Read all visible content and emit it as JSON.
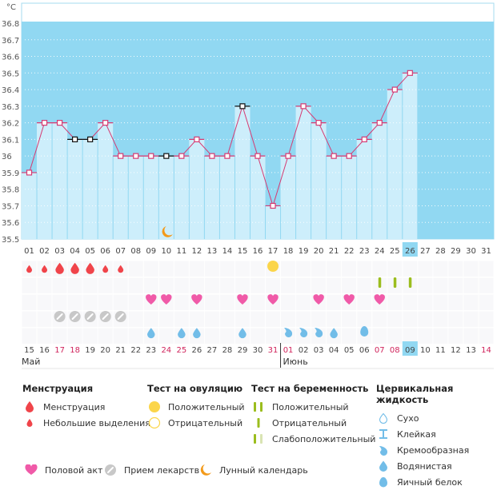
{
  "chart_data": {
    "type": "bar",
    "title": "",
    "ylabel": "°C",
    "xlabel": "",
    "ylim": [
      35.5,
      36.8
    ],
    "yticks": [
      "36.8",
      "36.7",
      "36.6",
      "36.5",
      "36.4",
      "36.3",
      "36.2",
      "36.1",
      "36",
      "35.9",
      "35.8",
      "35.7",
      "35.6",
      "35.5"
    ],
    "ytick_values": [
      36.8,
      36.7,
      36.6,
      36.5,
      36.4,
      36.3,
      36.2,
      36.1,
      36.0,
      35.9,
      35.8,
      35.7,
      35.6,
      35.5
    ],
    "cycle_days": [
      "01",
      "02",
      "03",
      "04",
      "05",
      "06",
      "07",
      "08",
      "09",
      "10",
      "11",
      "12",
      "13",
      "14",
      "15",
      "16",
      "17",
      "18",
      "19",
      "20",
      "21",
      "22",
      "23",
      "24",
      "25",
      "26",
      "27",
      "28",
      "29",
      "30",
      "31"
    ],
    "current_day": "26",
    "grid": true,
    "series": [
      {
        "name": "Базальная температура",
        "color": "#d63a72",
        "values": [
          35.9,
          36.2,
          36.2,
          36.1,
          36.1,
          36.2,
          36.0,
          36.0,
          36.0,
          36.0,
          36.0,
          36.1,
          36.0,
          36.0,
          36.3,
          36.0,
          35.7,
          36.0,
          36.3,
          36.2,
          36.0,
          36.0,
          36.1,
          36.2,
          36.4,
          36.5
        ],
        "excluded_points_days": [
          "04",
          "05",
          "10",
          "15"
        ]
      }
    ],
    "moon_day": "10",
    "dates": [
      "15",
      "16",
      "17",
      "18",
      "19",
      "20",
      "21",
      "22",
      "23",
      "24",
      "25",
      "26",
      "27",
      "28",
      "29",
      "30",
      "31",
      "01",
      "02",
      "03",
      "04",
      "05",
      "06",
      "07",
      "08",
      "09",
      "10",
      "11",
      "12",
      "13",
      "14"
    ],
    "weekend_dates_idx": [
      2,
      3,
      9,
      10,
      16,
      17,
      23,
      24,
      30
    ],
    "current_date": "09",
    "months": [
      {
        "label": "Май",
        "start_idx": 0
      },
      {
        "label": "Июнь",
        "start_idx": 17
      }
    ],
    "markers": {
      "menstruation_heavy": [
        "03",
        "04",
        "05"
      ],
      "menstruation_light": [
        "01",
        "02",
        "06",
        "07"
      ],
      "ovulation_positive": [
        "17"
      ],
      "pregnancy_test": [
        "24",
        "25",
        "26"
      ],
      "intercourse": [
        "09",
        "10",
        "12",
        "15",
        "17",
        "20",
        "22",
        "24"
      ],
      "medication": [
        "03",
        "04",
        "05",
        "06",
        "07"
      ],
      "fluid_watery": [
        "09",
        "11",
        "12",
        "15",
        "21"
      ],
      "fluid_creamy": [
        "18",
        "19",
        "20"
      ],
      "fluid_egg_white": [
        "23"
      ]
    }
  },
  "colors": {
    "plot_bg": "#91d8f2",
    "bar_fill": "#cdeefb",
    "line": "#d63a72",
    "menstruation": "#f0444a",
    "ovulation": "#fbd54a",
    "pregnancy": "#9bbd1e",
    "pregnancy_weak": "#d9e4b3",
    "heart": "#f05aa8",
    "pill": "#c8c8c8",
    "fluid": "#72bde8",
    "moon": "#f39a1a",
    "weekend": "#d0245c"
  },
  "legend": {
    "menstruation": {
      "title": "Менструация",
      "items": [
        "Менструация",
        "Небольшие выделения"
      ]
    },
    "ovulation": {
      "title": "Тест на овуляцию",
      "items": [
        "Положительный",
        "Отрицательный"
      ]
    },
    "pregnancy": {
      "title": "Тест на беременность",
      "items": [
        "Положительный",
        "Отрицательный",
        "Слабоположительный"
      ]
    },
    "fluid": {
      "title": "Цервикальная жидкость",
      "items": [
        "Сухо",
        "Клейкая",
        "Кремообразная",
        "Водянистая",
        "Яичный белок"
      ]
    },
    "bottom": [
      "Половой акт",
      "Прием лекарств",
      "Лунный календарь"
    ]
  }
}
